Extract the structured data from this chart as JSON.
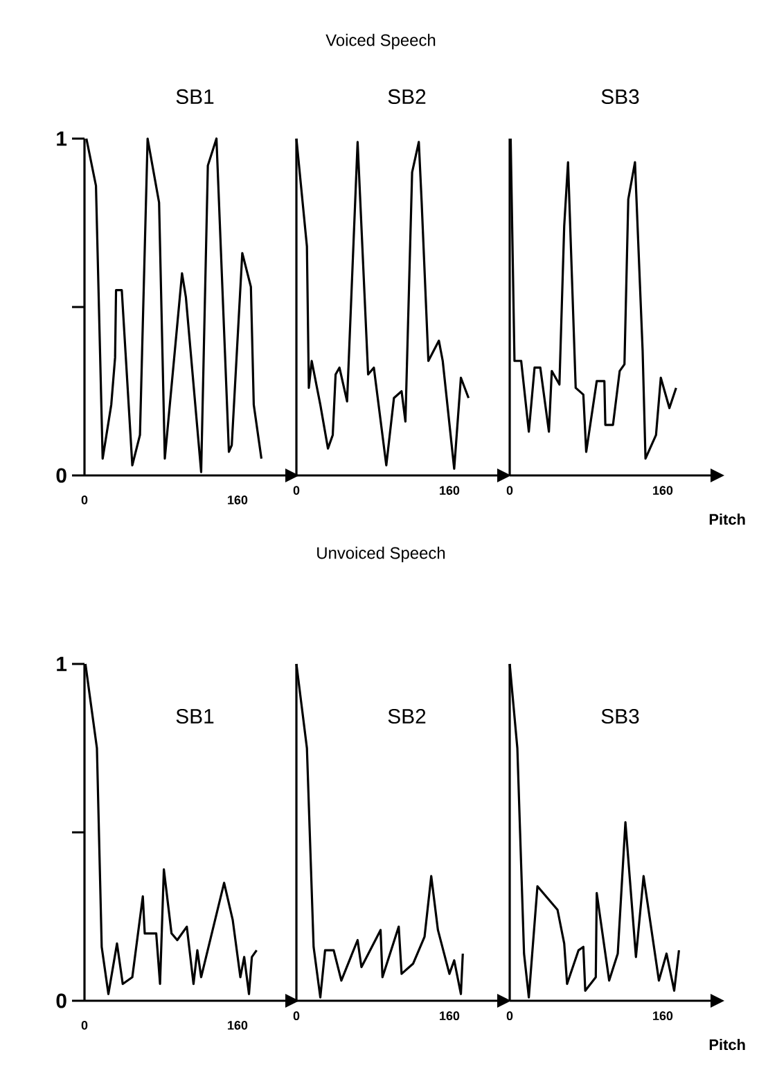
{
  "chart_data": [
    {
      "type": "line",
      "title": "SB1",
      "xlim": [
        0,
        210
      ],
      "xticks": [
        0,
        160
      ],
      "ylim": [
        0,
        1
      ],
      "yticks": [
        0,
        {
          "value": 0.5,
          "label": null
        },
        1
      ],
      "marker": "none",
      "line_style": "solid",
      "series": [
        {
          "color": "#000000",
          "x": [
            2,
            12,
            19,
            28,
            32,
            33,
            39,
            50,
            58,
            66,
            78,
            84,
            102,
            106,
            122,
            129,
            138,
            151,
            154,
            165,
            174,
            177,
            185
          ],
          "values": [
            1.0,
            0.86,
            0.05,
            0.21,
            0.35,
            0.55,
            0.55,
            0.03,
            0.12,
            1.0,
            0.81,
            0.05,
            0.6,
            0.53,
            0.01,
            0.92,
            1.0,
            0.07,
            0.09,
            0.66,
            0.56,
            0.21,
            0.05
          ]
        }
      ]
    },
    {
      "type": "line",
      "title": "SB2",
      "subtitle": "Voiced Speech",
      "xlim": [
        0,
        210
      ],
      "xticks": [
        0,
        160
      ],
      "ylim": [
        0,
        1
      ],
      "tick_labels": "x",
      "marker": "none",
      "line_style": "solid",
      "series": [
        {
          "color": "#000000",
          "x": [
            0,
            11,
            13,
            16,
            25,
            33,
            38,
            41,
            45,
            53,
            64,
            75,
            81,
            94,
            102,
            110,
            114,
            121,
            128,
            131,
            138,
            149,
            153,
            165,
            172,
            180
          ],
          "values": [
            1.0,
            0.68,
            0.26,
            0.34,
            0.21,
            0.08,
            0.12,
            0.3,
            0.32,
            0.22,
            0.99,
            0.3,
            0.32,
            0.03,
            0.23,
            0.25,
            0.16,
            0.9,
            0.99,
            0.81,
            0.34,
            0.4,
            0.34,
            0.02,
            0.29,
            0.23
          ]
        }
      ]
    },
    {
      "type": "line",
      "title": "SB3",
      "xlabel": "Pitch",
      "xlim": [
        0,
        210
      ],
      "xticks": [
        0,
        160
      ],
      "ylim": [
        0,
        1
      ],
      "tick_labels": "x",
      "marker": "none",
      "line_style": "solid",
      "series": [
        {
          "color": "#000000",
          "x": [
            1,
            5,
            12,
            20,
            26,
            32,
            41,
            44,
            52,
            57,
            61,
            69,
            77,
            80,
            91,
            99,
            100,
            108,
            115,
            120,
            124,
            131,
            139,
            142,
            153,
            158,
            167,
            174
          ],
          "values": [
            1.0,
            0.34,
            0.34,
            0.13,
            0.32,
            0.32,
            0.13,
            0.31,
            0.27,
            0.74,
            0.93,
            0.26,
            0.24,
            0.07,
            0.28,
            0.28,
            0.15,
            0.15,
            0.31,
            0.33,
            0.82,
            0.93,
            0.37,
            0.05,
            0.12,
            0.29,
            0.2,
            0.26
          ]
        }
      ]
    },
    {
      "type": "line",
      "title": "SB1",
      "xlim": [
        0,
        210
      ],
      "xticks": [
        0,
        160
      ],
      "ylim": [
        0,
        1
      ],
      "yticks": [
        0,
        {
          "value": 0.5,
          "label": null
        },
        1
      ],
      "marker": "none",
      "line_style": "solid",
      "series": [
        {
          "color": "#000000",
          "x": [
            1,
            13,
            18,
            25,
            34,
            40,
            50,
            61,
            63,
            70,
            75,
            79,
            83,
            91,
            97,
            107,
            114,
            118,
            122,
            146,
            155,
            163,
            167,
            172,
            175,
            180
          ],
          "values": [
            1.0,
            0.75,
            0.16,
            0.02,
            0.17,
            0.05,
            0.07,
            0.31,
            0.2,
            0.2,
            0.2,
            0.05,
            0.39,
            0.2,
            0.18,
            0.22,
            0.05,
            0.15,
            0.07,
            0.35,
            0.24,
            0.07,
            0.13,
            0.02,
            0.13,
            0.15
          ]
        }
      ]
    },
    {
      "type": "line",
      "title": "SB2",
      "subtitle": "Unvoiced Speech",
      "xlim": [
        0,
        210
      ],
      "xticks": [
        0,
        160
      ],
      "ylim": [
        0,
        1
      ],
      "tick_labels": "x",
      "marker": "none",
      "line_style": "solid",
      "series": [
        {
          "color": "#000000",
          "x": [
            0,
            11,
            18,
            25,
            30,
            39,
            47,
            64,
            68,
            88,
            90,
            107,
            110,
            122,
            134,
            141,
            148,
            160,
            165,
            172,
            174
          ],
          "values": [
            1.0,
            0.75,
            0.16,
            0.01,
            0.15,
            0.15,
            0.06,
            0.18,
            0.1,
            0.21,
            0.07,
            0.22,
            0.08,
            0.11,
            0.19,
            0.37,
            0.21,
            0.08,
            0.12,
            0.02,
            0.14
          ]
        }
      ]
    },
    {
      "type": "line",
      "title": "SB3",
      "xlabel": "Pitch",
      "xlim": [
        0,
        210
      ],
      "xticks": [
        0,
        160
      ],
      "ylim": [
        0,
        1
      ],
      "tick_labels": "x",
      "marker": "none",
      "line_style": "solid",
      "series": [
        {
          "color": "#000000",
          "x": [
            0,
            8,
            15,
            20,
            29,
            50,
            57,
            60,
            72,
            77,
            79,
            90,
            91,
            104,
            113,
            121,
            132,
            140,
            156,
            164,
            172,
            177
          ],
          "values": [
            1.0,
            0.75,
            0.14,
            0.01,
            0.34,
            0.27,
            0.17,
            0.05,
            0.15,
            0.16,
            0.03,
            0.07,
            0.32,
            0.06,
            0.14,
            0.53,
            0.13,
            0.37,
            0.06,
            0.14,
            0.03,
            0.15
          ]
        }
      ]
    }
  ]
}
